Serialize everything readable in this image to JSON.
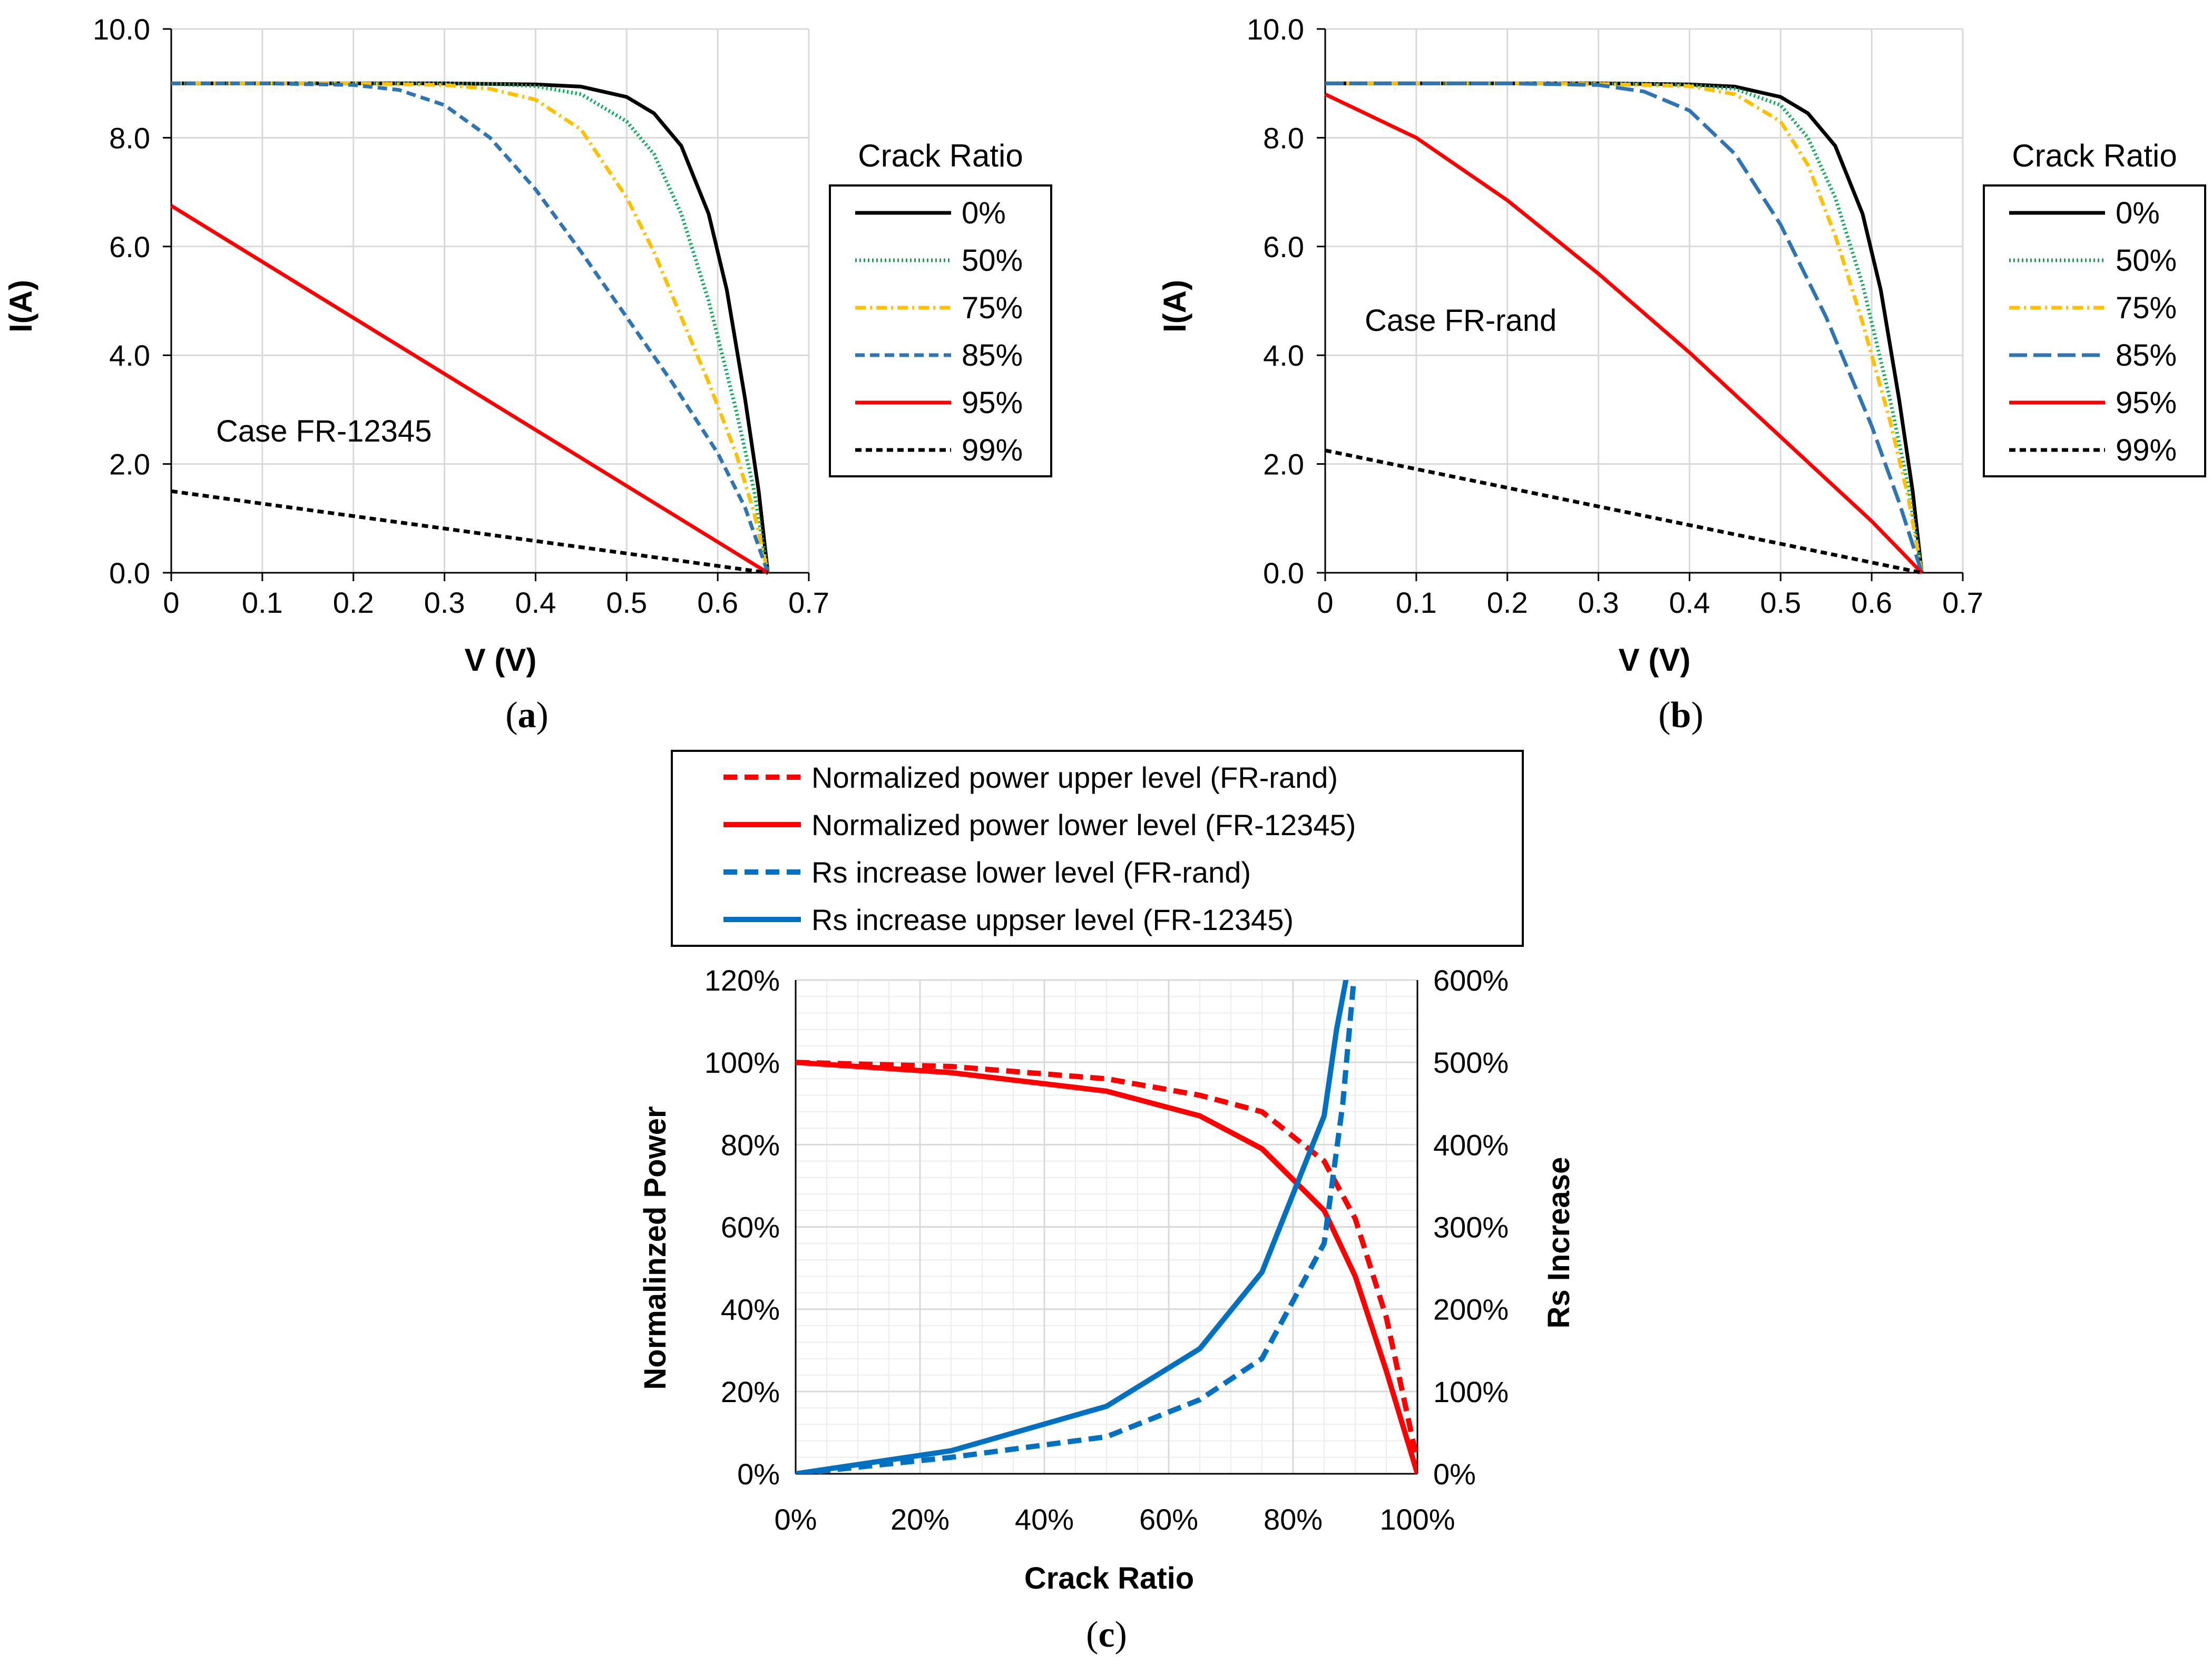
{
  "colors": {
    "black": "#000000",
    "green": "#00B050",
    "gold": "#FFC000",
    "blue": "#2E75B6",
    "red": "#FF0000",
    "rs_blue": "#0070C0",
    "grid": "#D9D9D9",
    "minor_grid": "#EDEDED"
  },
  "chart_data": [
    {
      "id": "a",
      "type": "line",
      "caption_open": "(",
      "caption": "a",
      "caption_close": ")",
      "case_label": "Case FR-12345",
      "xlabel": "V (V)",
      "ylabel": "I(A)",
      "xlim": [
        0,
        0.7
      ],
      "ylim": [
        0,
        10
      ],
      "xticks": [
        0,
        0.1,
        0.2,
        0.3,
        0.4,
        0.5,
        0.6,
        0.7
      ],
      "xtick_labels": [
        "0",
        "0.1",
        "0.2",
        "0.3",
        "0.4",
        "0.5",
        "0.6",
        "0.7"
      ],
      "yticks": [
        0,
        2,
        4,
        6,
        8,
        10
      ],
      "ytick_labels": [
        "0.0",
        "2.0",
        "4.0",
        "6.0",
        "8.0",
        "10.0"
      ],
      "legend_title": "Crack Ratio",
      "legend_position": "right",
      "series": [
        {
          "name": "0%",
          "color": "black",
          "dash": "solid",
          "x": [
            0,
            0.1,
            0.2,
            0.3,
            0.4,
            0.45,
            0.5,
            0.53,
            0.56,
            0.59,
            0.61,
            0.63,
            0.645,
            0.655
          ],
          "y": [
            9.0,
            9.0,
            9.0,
            9.0,
            8.98,
            8.94,
            8.75,
            8.45,
            7.85,
            6.6,
            5.2,
            3.2,
            1.5,
            0
          ]
        },
        {
          "name": "50%",
          "color": "green",
          "dash": "dotted",
          "x": [
            0,
            0.1,
            0.2,
            0.3,
            0.35,
            0.4,
            0.45,
            0.5,
            0.53,
            0.56,
            0.59,
            0.62,
            0.64,
            0.655
          ],
          "y": [
            9.0,
            9.0,
            9.0,
            9.0,
            8.99,
            8.95,
            8.8,
            8.3,
            7.7,
            6.6,
            5.0,
            3.0,
            1.5,
            0
          ]
        },
        {
          "name": "75%",
          "color": "gold",
          "dash": "dashdot",
          "x": [
            0,
            0.1,
            0.2,
            0.3,
            0.35,
            0.4,
            0.45,
            0.5,
            0.53,
            0.56,
            0.59,
            0.62,
            0.64,
            0.655
          ],
          "y": [
            9.0,
            9.0,
            9.0,
            8.97,
            8.9,
            8.7,
            8.15,
            6.9,
            5.9,
            4.7,
            3.5,
            2.2,
            1.1,
            0
          ]
        },
        {
          "name": "85%",
          "color": "blue",
          "dash": "dashed",
          "x": [
            0,
            0.1,
            0.2,
            0.25,
            0.3,
            0.35,
            0.4,
            0.45,
            0.5,
            0.55,
            0.6,
            0.63,
            0.655
          ],
          "y": [
            9.0,
            9.0,
            8.97,
            8.88,
            8.6,
            8.0,
            7.05,
            5.9,
            4.7,
            3.5,
            2.2,
            1.2,
            0
          ]
        },
        {
          "name": "95%",
          "color": "red",
          "dash": "solid",
          "x": [
            0,
            0.655
          ],
          "y": [
            6.75,
            0
          ]
        },
        {
          "name": "99%",
          "color": "black",
          "dash": "dashedshort",
          "x": [
            0,
            0.655
          ],
          "y": [
            1.5,
            0
          ]
        }
      ]
    },
    {
      "id": "b",
      "type": "line",
      "caption_open": "(",
      "caption": "b",
      "caption_close": ")",
      "case_label": "Case FR-rand",
      "xlabel": "V (V)",
      "ylabel": "I(A)",
      "xlim": [
        0,
        0.7
      ],
      "ylim": [
        0,
        10
      ],
      "xticks": [
        0,
        0.1,
        0.2,
        0.3,
        0.4,
        0.5,
        0.6,
        0.7
      ],
      "xtick_labels": [
        "0",
        "0.1",
        "0.2",
        "0.3",
        "0.4",
        "0.5",
        "0.6",
        "0.7"
      ],
      "yticks": [
        0,
        2,
        4,
        6,
        8,
        10
      ],
      "ytick_labels": [
        "0.0",
        "2.0",
        "4.0",
        "6.0",
        "8.0",
        "10.0"
      ],
      "legend_title": "Crack Ratio",
      "legend_position": "right",
      "series": [
        {
          "name": "0%",
          "color": "black",
          "dash": "solid",
          "x": [
            0,
            0.1,
            0.2,
            0.3,
            0.4,
            0.45,
            0.5,
            0.53,
            0.56,
            0.59,
            0.61,
            0.63,
            0.645,
            0.655
          ],
          "y": [
            9.0,
            9.0,
            9.0,
            9.0,
            8.98,
            8.94,
            8.75,
            8.45,
            7.85,
            6.6,
            5.2,
            3.2,
            1.5,
            0
          ]
        },
        {
          "name": "50%",
          "color": "green",
          "dash": "dotted",
          "x": [
            0,
            0.1,
            0.2,
            0.3,
            0.4,
            0.45,
            0.5,
            0.53,
            0.56,
            0.59,
            0.62,
            0.64,
            0.655
          ],
          "y": [
            9.0,
            9.0,
            9.0,
            9.0,
            8.97,
            8.9,
            8.6,
            8.0,
            6.9,
            5.3,
            3.2,
            1.6,
            0
          ]
        },
        {
          "name": "75%",
          "color": "gold",
          "dash": "dashdot",
          "x": [
            0,
            0.1,
            0.2,
            0.3,
            0.4,
            0.45,
            0.5,
            0.53,
            0.56,
            0.59,
            0.62,
            0.64,
            0.655
          ],
          "y": [
            9.0,
            9.0,
            9.0,
            8.99,
            8.95,
            8.8,
            8.3,
            7.5,
            6.2,
            4.6,
            2.8,
            1.4,
            0
          ]
        },
        {
          "name": "85%",
          "color": "blue",
          "dash": "longdash",
          "x": [
            0,
            0.1,
            0.2,
            0.3,
            0.35,
            0.4,
            0.45,
            0.5,
            0.55,
            0.6,
            0.63,
            0.655
          ],
          "y": [
            9.0,
            9.0,
            9.0,
            8.97,
            8.85,
            8.5,
            7.7,
            6.4,
            4.7,
            2.7,
            1.3,
            0
          ]
        },
        {
          "name": "95%",
          "color": "red",
          "dash": "solid",
          "x": [
            0,
            0.1,
            0.2,
            0.3,
            0.4,
            0.5,
            0.6,
            0.655
          ],
          "y": [
            8.8,
            8.0,
            6.85,
            5.5,
            4.05,
            2.5,
            0.95,
            0
          ]
        },
        {
          "name": "99%",
          "color": "black",
          "dash": "dashedshort",
          "x": [
            0,
            0.655
          ],
          "y": [
            2.25,
            0
          ]
        }
      ]
    },
    {
      "id": "c",
      "type": "line",
      "caption_open": "(",
      "caption": "c",
      "caption_close": ")",
      "xlabel": "Crack Ratio",
      "ylabel": "Normalinzed Power",
      "y2label": "Rs Increase",
      "xlim": [
        0,
        100
      ],
      "ylim": [
        0,
        120
      ],
      "y2lim": [
        0,
        600
      ],
      "xticks": [
        0,
        20,
        40,
        60,
        80,
        100
      ],
      "xtick_labels": [
        "0%",
        "20%",
        "40%",
        "60%",
        "80%",
        "100%"
      ],
      "yticks": [
        0,
        20,
        40,
        60,
        80,
        100,
        120
      ],
      "ytick_labels": [
        "0%",
        "20%",
        "40%",
        "60%",
        "80%",
        "100%",
        "120%"
      ],
      "y2ticks": [
        0,
        100,
        200,
        300,
        400,
        500,
        600
      ],
      "y2tick_labels": [
        "0%",
        "100%",
        "200%",
        "300%",
        "400%",
        "500%",
        "600%"
      ],
      "legend_position": "top",
      "series": [
        {
          "name": "Normalized power upper level (FR-rand)",
          "axis": "left",
          "color": "red",
          "dash": "dashed",
          "x": [
            0,
            25,
            50,
            65,
            75,
            85,
            90,
            95,
            100
          ],
          "y": [
            100,
            99,
            96,
            92,
            88,
            76,
            62,
            38,
            3
          ]
        },
        {
          "name": "Normalized power lower level (FR-12345)",
          "axis": "left",
          "color": "red",
          "dash": "solid",
          "x": [
            0,
            25,
            50,
            65,
            75,
            85,
            90,
            95,
            100
          ],
          "y": [
            100,
            97.5,
            93,
            87,
            79,
            64,
            48,
            25,
            0
          ]
        },
        {
          "name": "Rs increase lower level (FR-rand)",
          "axis": "right",
          "color": "rs_blue",
          "dash": "dashed",
          "x": [
            0,
            25,
            50,
            65,
            75,
            85,
            88,
            90
          ],
          "y": [
            0,
            20,
            45,
            90,
            140,
            280,
            450,
            620
          ]
        },
        {
          "name": "Rs increase uppser level (FR-12345)",
          "axis": "right",
          "color": "rs_blue",
          "dash": "solid",
          "x": [
            0,
            25,
            50,
            65,
            75,
            85,
            87,
            89
          ],
          "y": [
            0,
            28,
            82,
            152,
            245,
            435,
            540,
            620
          ]
        }
      ]
    }
  ]
}
